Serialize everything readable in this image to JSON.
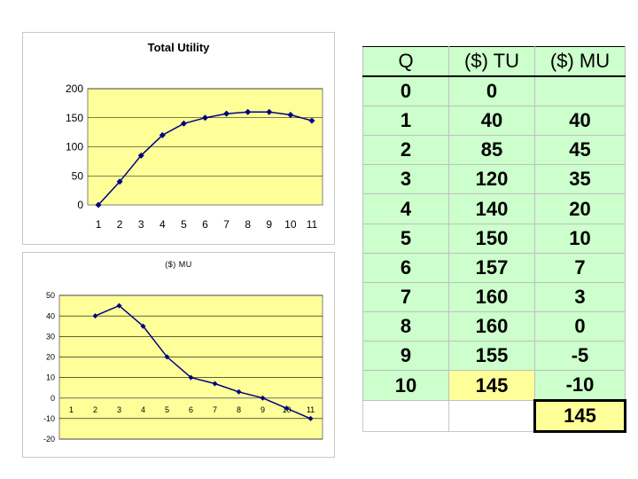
{
  "chart_data": [
    {
      "type": "line",
      "title": "Total Utility",
      "x": [
        1,
        2,
        3,
        4,
        5,
        6,
        7,
        8,
        9,
        10,
        11
      ],
      "series": [
        {
          "values": [
            0,
            40,
            85,
            120,
            140,
            150,
            157,
            160,
            160,
            155,
            145
          ]
        }
      ],
      "xlabel": "",
      "ylabel": "",
      "ylim": [
        0,
        200
      ],
      "yticks": [
        "0",
        "50",
        "100",
        "150",
        "200"
      ],
      "xticks": [
        "1",
        "2",
        "3",
        "4",
        "5",
        "6",
        "7",
        "8",
        "9",
        "10",
        "11"
      ],
      "grid": true,
      "plot_background": "#ffff99",
      "line_color": "#000080"
    },
    {
      "type": "line",
      "title": "($) MU",
      "x": [
        2,
        3,
        4,
        5,
        6,
        7,
        8,
        9,
        10,
        11
      ],
      "series": [
        {
          "values": [
            40,
            45,
            35,
            20,
            10,
            7,
            3,
            0,
            -5,
            -10
          ]
        }
      ],
      "xlabel": "",
      "ylabel": "",
      "ylim": [
        -20,
        50
      ],
      "yticks": [
        "-20",
        "-10",
        "0",
        "10",
        "20",
        "30",
        "40",
        "50"
      ],
      "xticks": [
        "1",
        "2",
        "3",
        "4",
        "5",
        "6",
        "7",
        "8",
        "9",
        "10",
        "11"
      ],
      "grid": true,
      "plot_background": "#ffff99",
      "line_color": "#000080"
    }
  ],
  "table": {
    "headers": [
      "Q",
      "($)  TU",
      "($)  MU"
    ],
    "rows": [
      [
        "0",
        "0",
        ""
      ],
      [
        "1",
        "40",
        "40"
      ],
      [
        "2",
        "85",
        "45"
      ],
      [
        "3",
        "120",
        "35"
      ],
      [
        "4",
        "140",
        "20"
      ],
      [
        "5",
        "150",
        "10"
      ],
      [
        "6",
        "157",
        "7"
      ],
      [
        "7",
        "160",
        "3"
      ],
      [
        "8",
        "160",
        "0"
      ],
      [
        "9",
        "155",
        "-5"
      ],
      [
        "10",
        "145",
        "-10"
      ]
    ],
    "total": "145",
    "colors": {
      "cell_background": "#ccffcc",
      "highlight": "#ffff99"
    }
  }
}
